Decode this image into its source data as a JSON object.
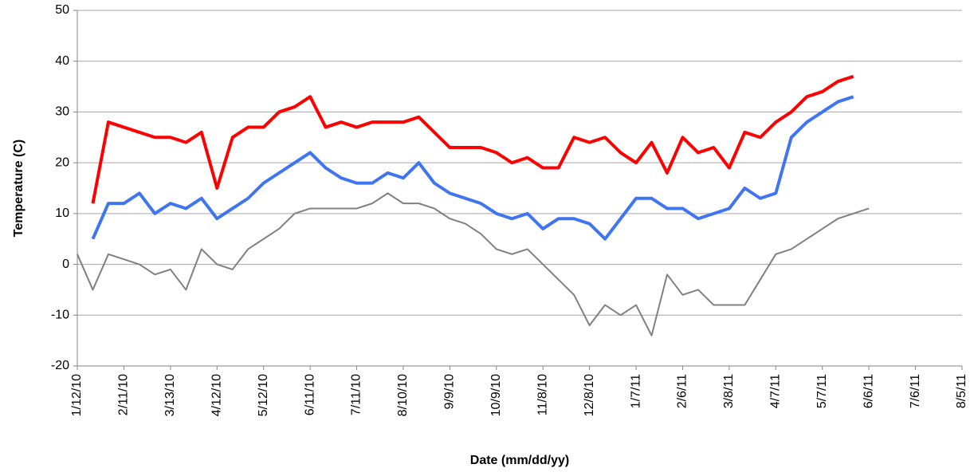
{
  "chart_data": {
    "type": "line",
    "xlabel": "Date (mm/dd/yy)",
    "ylabel": "Temperature (C)",
    "x": [
      "2010-01-12",
      "2010-01-22",
      "2010-02-01",
      "2010-02-11",
      "2010-02-21",
      "2010-03-03",
      "2010-03-13",
      "2010-03-23",
      "2010-04-02",
      "2010-04-12",
      "2010-04-22",
      "2010-05-02",
      "2010-05-12",
      "2010-05-22",
      "2010-06-01",
      "2010-06-11",
      "2010-06-21",
      "2010-07-01",
      "2010-07-11",
      "2010-07-21",
      "2010-07-31",
      "2010-08-10",
      "2010-08-20",
      "2010-08-30",
      "2010-09-09",
      "2010-09-19",
      "2010-09-29",
      "2010-10-09",
      "2010-10-19",
      "2010-10-29",
      "2010-11-08",
      "2010-11-18",
      "2010-11-28",
      "2010-12-08",
      "2010-12-18",
      "2010-12-28",
      "2011-01-07",
      "2011-01-17",
      "2011-01-27",
      "2011-02-06",
      "2011-02-16",
      "2011-02-26",
      "2011-03-08",
      "2011-03-18",
      "2011-03-28",
      "2011-04-07",
      "2011-04-17",
      "2011-04-27",
      "2011-05-07",
      "2011-05-17",
      "2011-05-27",
      "2011-06-06"
    ],
    "series": [
      {
        "color": "#ff0000",
        "values": [
          null,
          12,
          28,
          27,
          26,
          25,
          25,
          24,
          26,
          15,
          25,
          27,
          27,
          30,
          31,
          33,
          27,
          28,
          27,
          28,
          28,
          28,
          29,
          26,
          23,
          23,
          23,
          22,
          20,
          21,
          19,
          19,
          25,
          24,
          25,
          22,
          20,
          24,
          18,
          25,
          22,
          23,
          19,
          26,
          25,
          28,
          30,
          33,
          34,
          36,
          37,
          null
        ]
      },
      {
        "color": "#3f75f0",
        "values": [
          null,
          5,
          12,
          12,
          14,
          10,
          12,
          11,
          13,
          9,
          11,
          13,
          16,
          18,
          20,
          22,
          19,
          17,
          16,
          16,
          18,
          17,
          20,
          16,
          14,
          13,
          12,
          10,
          9,
          10,
          7,
          9,
          9,
          8,
          5,
          9,
          13,
          13,
          11,
          11,
          9,
          10,
          11,
          15,
          13,
          14,
          25,
          28,
          30,
          32,
          33,
          null
        ]
      },
      {
        "color": "#808080",
        "values": [
          2,
          -5,
          2,
          1,
          0,
          -2,
          -1,
          -5,
          3,
          0,
          -1,
          3,
          5,
          7,
          10,
          11,
          11,
          11,
          11,
          12,
          14,
          12,
          12,
          11,
          9,
          8,
          6,
          3,
          2,
          3,
          0,
          -3,
          -6,
          -12,
          -8,
          -10,
          -8,
          -14,
          -2,
          -6,
          -5,
          -8,
          -8,
          -8,
          -3,
          2,
          3,
          5,
          7,
          9,
          10,
          11
        ]
      }
    ],
    "xlim": [
      "2010-01-12",
      "2011-08-05"
    ],
    "xticks": [
      {
        "value": "2010-01-12",
        "label": "1/12/10"
      },
      {
        "value": "2010-02-11",
        "label": "2/11/10"
      },
      {
        "value": "2010-03-13",
        "label": "3/13/10"
      },
      {
        "value": "2010-04-12",
        "label": "4/12/10"
      },
      {
        "value": "2010-05-12",
        "label": "5/12/10"
      },
      {
        "value": "2010-06-11",
        "label": "6/11/10"
      },
      {
        "value": "2010-07-11",
        "label": "7/11/10"
      },
      {
        "value": "2010-08-10",
        "label": "8/10/10"
      },
      {
        "value": "2010-09-09",
        "label": "9/9/10"
      },
      {
        "value": "2010-10-09",
        "label": "10/9/10"
      },
      {
        "value": "2010-11-08",
        "label": "11/8/10"
      },
      {
        "value": "2010-12-08",
        "label": "12/8/10"
      },
      {
        "value": "2011-01-07",
        "label": "1/7/11"
      },
      {
        "value": "2011-02-06",
        "label": "2/6/11"
      },
      {
        "value": "2011-03-08",
        "label": "3/8/11"
      },
      {
        "value": "2011-04-07",
        "label": "4/7/11"
      },
      {
        "value": "2011-05-07",
        "label": "5/7/11"
      },
      {
        "value": "2011-06-06",
        "label": "6/6/11"
      },
      {
        "value": "2011-07-06",
        "label": "7/6/11"
      },
      {
        "value": "2011-08-05",
        "label": "8/5/11"
      }
    ],
    "ylim": [
      -20,
      50
    ],
    "yticks": [
      -20,
      -10,
      0,
      10,
      20,
      30,
      40,
      50
    ],
    "grid": true
  }
}
